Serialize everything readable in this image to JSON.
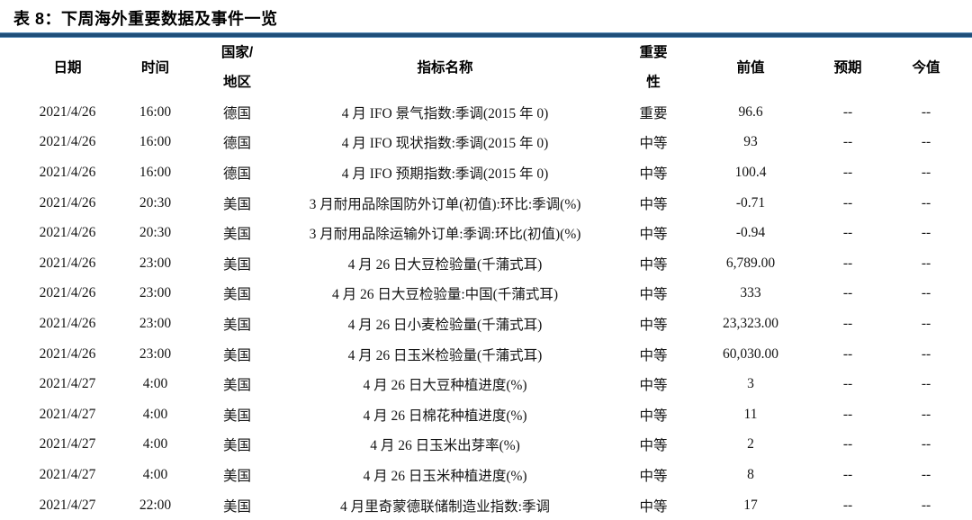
{
  "title": "表 8：下周海外重要数据及事件一览",
  "colors": {
    "rule_core": "#1F4E79",
    "rule_edge": "#5B8DB8",
    "text": "#141414",
    "title_text": "#000000"
  },
  "table": {
    "headers": [
      {
        "key": "date",
        "label": "日期"
      },
      {
        "key": "time",
        "label": "时间"
      },
      {
        "key": "country",
        "label": "国家/\n地区"
      },
      {
        "key": "indicator",
        "label": "指标名称"
      },
      {
        "key": "importance",
        "label": "重要\n性"
      },
      {
        "key": "previous",
        "label": "前值"
      },
      {
        "key": "expected",
        "label": "预期"
      },
      {
        "key": "current",
        "label": "今值"
      }
    ],
    "rows": [
      [
        "2021/4/26",
        "16:00",
        "德国",
        "4 月 IFO 景气指数:季调(2015 年 0)",
        "重要",
        "96.6",
        "--",
        "--"
      ],
      [
        "2021/4/26",
        "16:00",
        "德国",
        "4 月 IFO 现状指数:季调(2015 年 0)",
        "中等",
        "93",
        "--",
        "--"
      ],
      [
        "2021/4/26",
        "16:00",
        "德国",
        "4 月 IFO 预期指数:季调(2015 年 0)",
        "中等",
        "100.4",
        "--",
        "--"
      ],
      [
        "2021/4/26",
        "20:30",
        "美国",
        "3 月耐用品除国防外订单(初值):环比:季调(%)",
        "中等",
        "-0.71",
        "--",
        "--"
      ],
      [
        "2021/4/26",
        "20:30",
        "美国",
        "3 月耐用品除运输外订单:季调:环比(初值)(%)",
        "中等",
        "-0.94",
        "--",
        "--"
      ],
      [
        "2021/4/26",
        "23:00",
        "美国",
        "4 月 26 日大豆检验量(千蒲式耳)",
        "中等",
        "6,789.00",
        "--",
        "--"
      ],
      [
        "2021/4/26",
        "23:00",
        "美国",
        "4 月 26 日大豆检验量:中国(千蒲式耳)",
        "中等",
        "333",
        "--",
        "--"
      ],
      [
        "2021/4/26",
        "23:00",
        "美国",
        "4 月 26 日小麦检验量(千蒲式耳)",
        "中等",
        "23,323.00",
        "--",
        "--"
      ],
      [
        "2021/4/26",
        "23:00",
        "美国",
        "4 月 26 日玉米检验量(千蒲式耳)",
        "中等",
        "60,030.00",
        "--",
        "--"
      ],
      [
        "2021/4/27",
        "4:00",
        "美国",
        "4 月 26 日大豆种植进度(%)",
        "中等",
        "3",
        "--",
        "--"
      ],
      [
        "2021/4/27",
        "4:00",
        "美国",
        "4 月 26 日棉花种植进度(%)",
        "中等",
        "11",
        "--",
        "--"
      ],
      [
        "2021/4/27",
        "4:00",
        "美国",
        "4 月 26 日玉米出芽率(%)",
        "中等",
        "2",
        "--",
        "--"
      ],
      [
        "2021/4/27",
        "4:00",
        "美国",
        "4 月 26 日玉米种植进度(%)",
        "中等",
        "8",
        "--",
        "--"
      ],
      [
        "2021/4/27",
        "22:00",
        "美国",
        "4 月里奇蒙德联储制造业指数:季调",
        "中等",
        "17",
        "--",
        "--"
      ]
    ]
  }
}
